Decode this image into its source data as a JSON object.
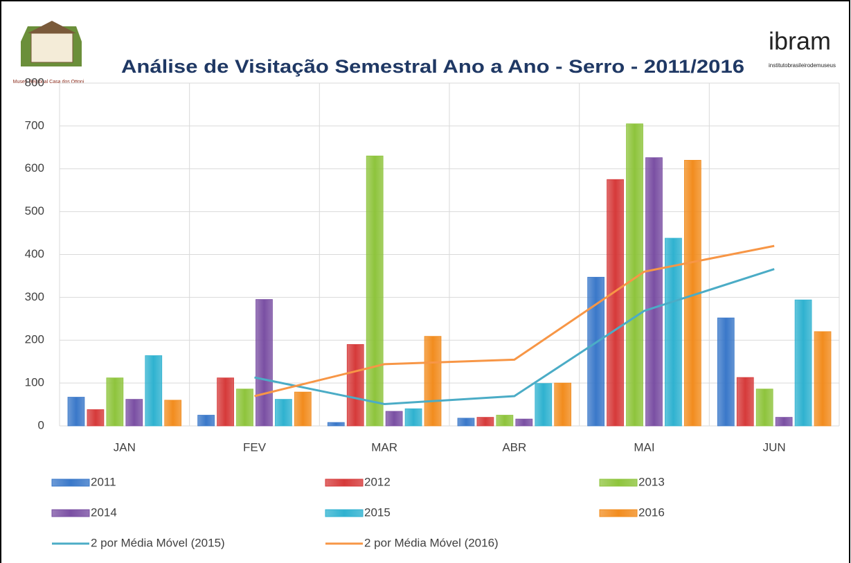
{
  "header": {
    "museum": "Museu Regional Casa dos Ottoni",
    "logo": "ibram",
    "logo_subtitle": "institutobrasileirodemuseus"
  },
  "chart_data": {
    "type": "bar",
    "title": "Análise de Visitação Semestral Ano a Ano - Serro  - 2011/2016",
    "categories": [
      "JAN",
      "FEV",
      "MAR",
      "ABR",
      "MAI",
      "JUN"
    ],
    "series": [
      {
        "name": "2011",
        "color": "#3a78c9",
        "values": [
          67,
          25,
          8,
          18,
          347,
          252
        ]
      },
      {
        "name": "2012",
        "color": "#d63a3a",
        "values": [
          38,
          112,
          190,
          20,
          575,
          113
        ]
      },
      {
        "name": "2013",
        "color": "#8ec43c",
        "values": [
          112,
          86,
          630,
          25,
          705,
          86
        ]
      },
      {
        "name": "2014",
        "color": "#7a4fa3",
        "values": [
          62,
          295,
          34,
          16,
          626,
          20
        ]
      },
      {
        "name": "2015",
        "color": "#2fb2d0",
        "values": [
          164,
          62,
          40,
          99,
          438,
          294
        ]
      },
      {
        "name": "2016",
        "color": "#f28c1e",
        "values": [
          60,
          79,
          209,
          100,
          620,
          220
        ]
      }
    ],
    "lines": [
      {
        "name": "2 por Média Móvel (2015)",
        "color": "#4bacc6",
        "values": [
          null,
          113,
          51,
          69.5,
          268.5,
          366
        ]
      },
      {
        "name": "2 por Média Móvel (2016)",
        "color": "#f79646",
        "values": [
          null,
          69.5,
          144,
          154.5,
          360,
          420
        ]
      }
    ],
    "ylim": [
      0,
      800
    ],
    "yticks": [
      0,
      100,
      200,
      300,
      400,
      500,
      600,
      700,
      800
    ],
    "grid": true
  }
}
